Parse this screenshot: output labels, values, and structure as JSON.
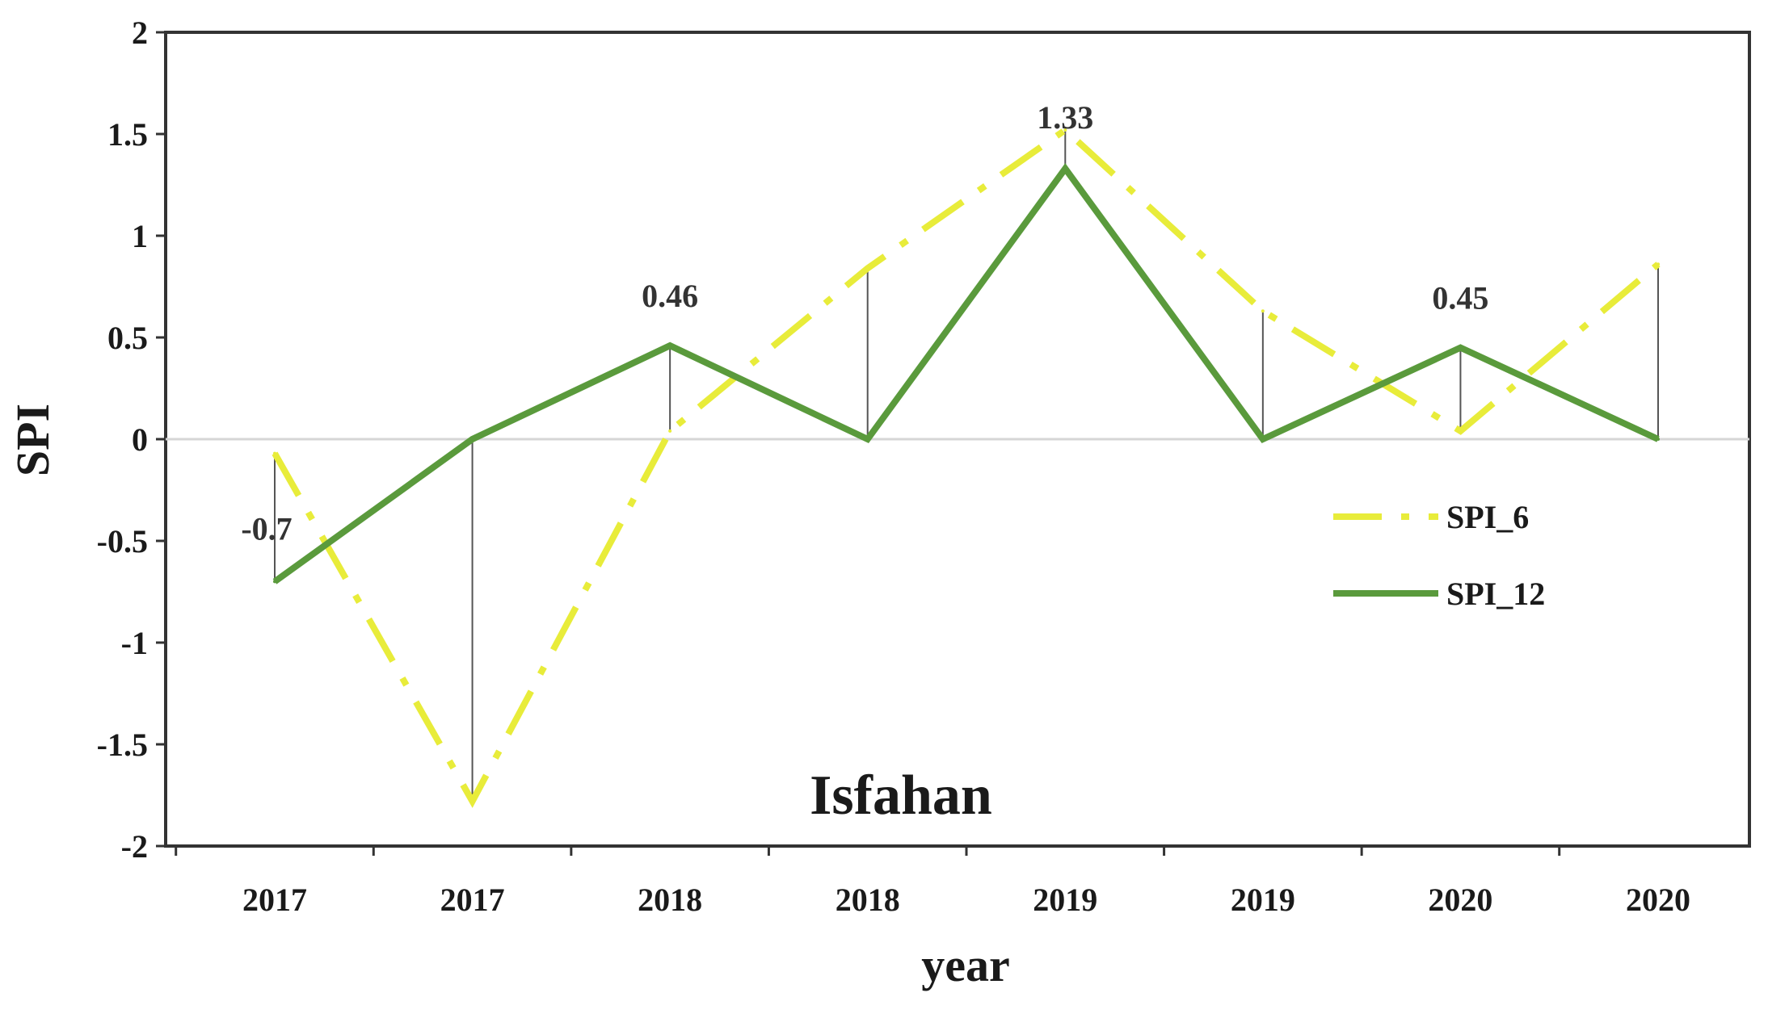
{
  "chart_data": {
    "type": "line",
    "title": "Isfahan",
    "xlabel": "year",
    "ylabel": "SPI",
    "categories": [
      "2017",
      "2017",
      "2018",
      "2018",
      "2019",
      "2019",
      "2020",
      "2020"
    ],
    "ylim": [
      -2,
      2
    ],
    "yticks": [
      "2",
      "1.5",
      "1",
      "0.5",
      "0",
      "-0.5",
      "-1",
      "-1.5",
      "-2"
    ],
    "ytick_values": [
      2,
      1.5,
      1,
      0.5,
      0,
      -0.5,
      -1,
      -1.5,
      -2
    ],
    "grid": false,
    "zero_line": true,
    "legend_position": "right",
    "series": [
      {
        "name": "SPI_6",
        "values": [
          -0.07,
          -1.78,
          0.04,
          0.84,
          1.52,
          0.63,
          0.04,
          0.86
        ],
        "color": "#e8ec3a",
        "style": "dash-dot"
      },
      {
        "name": "SPI_12",
        "values": [
          -0.7,
          0.0,
          0.46,
          0.0,
          1.33,
          0.0,
          0.45,
          0.0
        ],
        "color": "#5a9a3c",
        "style": "solid"
      }
    ],
    "annotations": [
      {
        "text": "-0.7",
        "index": 0
      },
      {
        "text": "0.46",
        "index": 2
      },
      {
        "text": "1.33",
        "index": 4
      },
      {
        "text": "0.45",
        "index": 6
      }
    ]
  }
}
